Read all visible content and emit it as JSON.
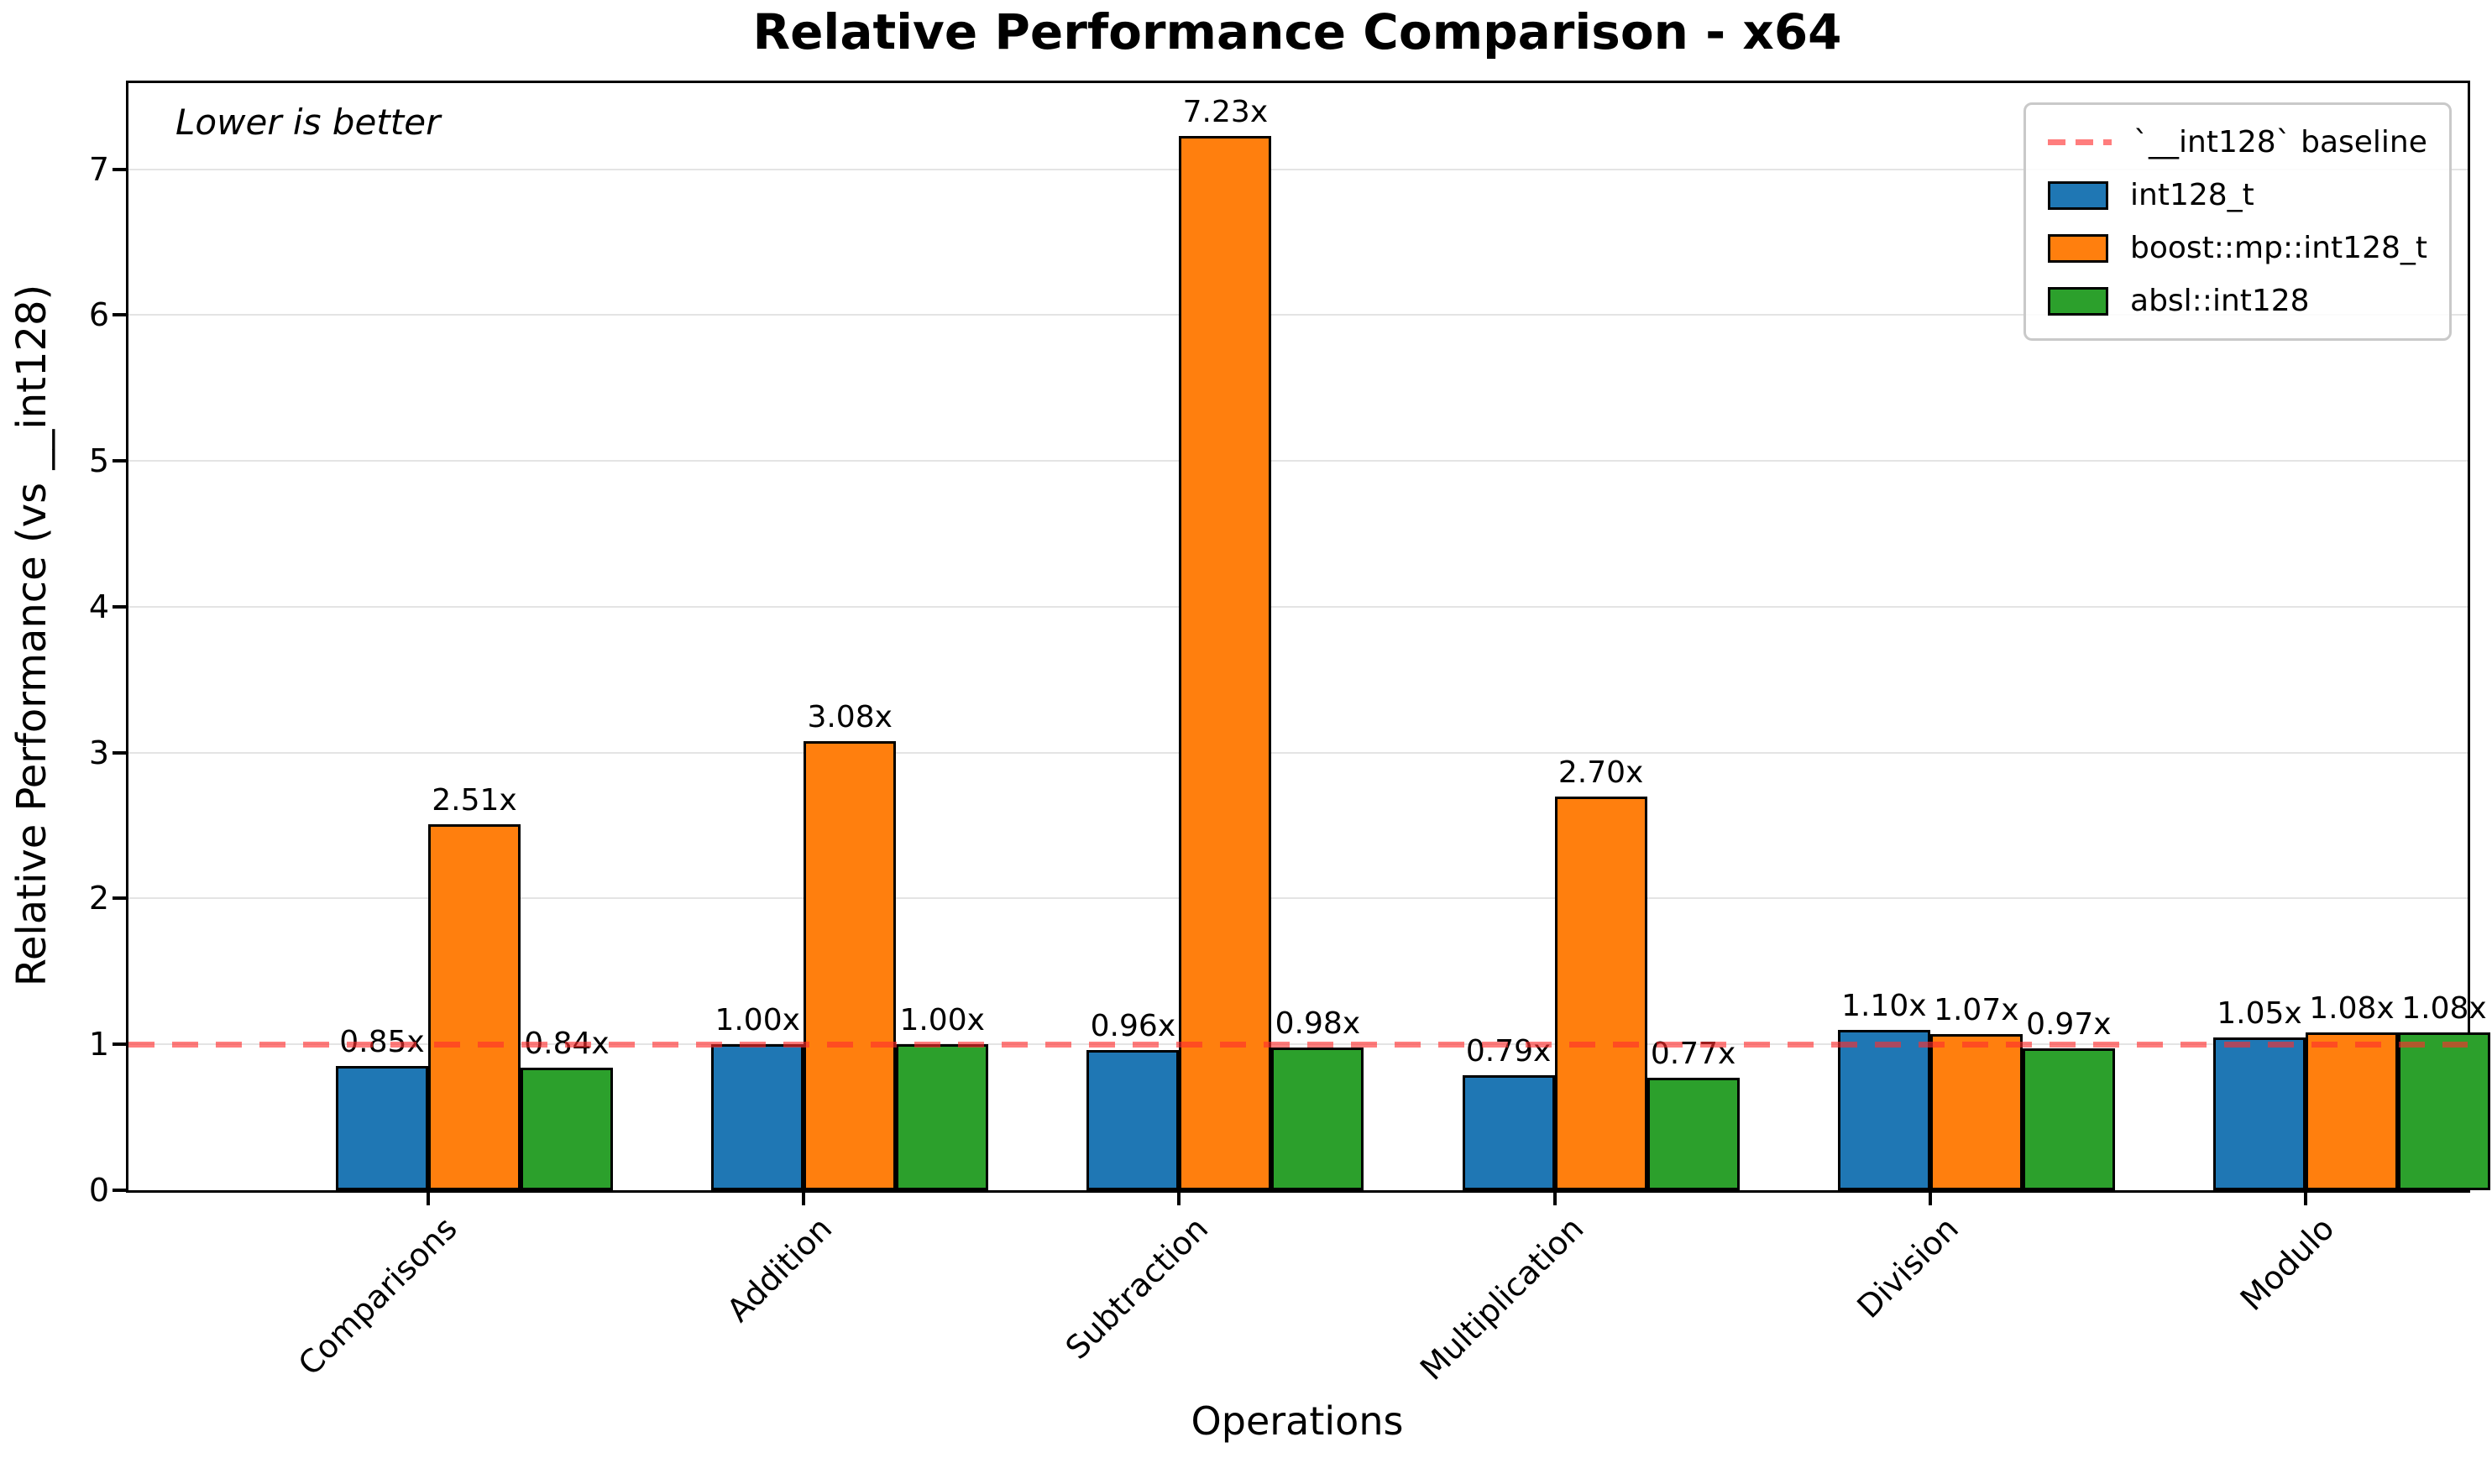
{
  "chart_data": {
    "type": "bar",
    "title": "Relative Performance Comparison - x64",
    "xlabel": "Operations",
    "ylabel": "Relative Performance (vs __int128)",
    "annotation": "Lower is better",
    "categories": [
      "Comparisons",
      "Addition",
      "Subtraction",
      "Multiplication",
      "Division",
      "Modulo"
    ],
    "series": [
      {
        "name": "int128_t",
        "color": "#1f77b4",
        "values": [
          0.85,
          1.0,
          0.96,
          0.79,
          1.1,
          1.05
        ],
        "labels": [
          "0.85x",
          "1.00x",
          "0.96x",
          "0.79x",
          "1.10x",
          "1.05x"
        ]
      },
      {
        "name": "boost::mp::int128_t",
        "color": "#ff7f0e",
        "values": [
          2.51,
          3.08,
          7.23,
          2.7,
          1.07,
          1.08
        ],
        "labels": [
          "2.51x",
          "3.08x",
          "7.23x",
          "2.70x",
          "1.07x",
          "1.08x"
        ]
      },
      {
        "name": "absl::int128",
        "color": "#2ca02c",
        "values": [
          0.84,
          1.0,
          0.98,
          0.77,
          0.97,
          1.08
        ],
        "labels": [
          "0.84x",
          "1.00x",
          "0.98x",
          "0.77x",
          "0.97x",
          "1.08x"
        ]
      }
    ],
    "baseline": {
      "value": 1.0,
      "label": "`__int128` baseline",
      "color": "#ff5a5a"
    },
    "yticks": [
      0,
      1,
      2,
      3,
      4,
      5,
      6,
      7
    ],
    "ylim": [
      0,
      7.59
    ],
    "grid": true,
    "legend_position": "upper right",
    "colors": {
      "grid": "#e4e4e4",
      "axis": "#000000",
      "background": "#ffffff"
    }
  }
}
